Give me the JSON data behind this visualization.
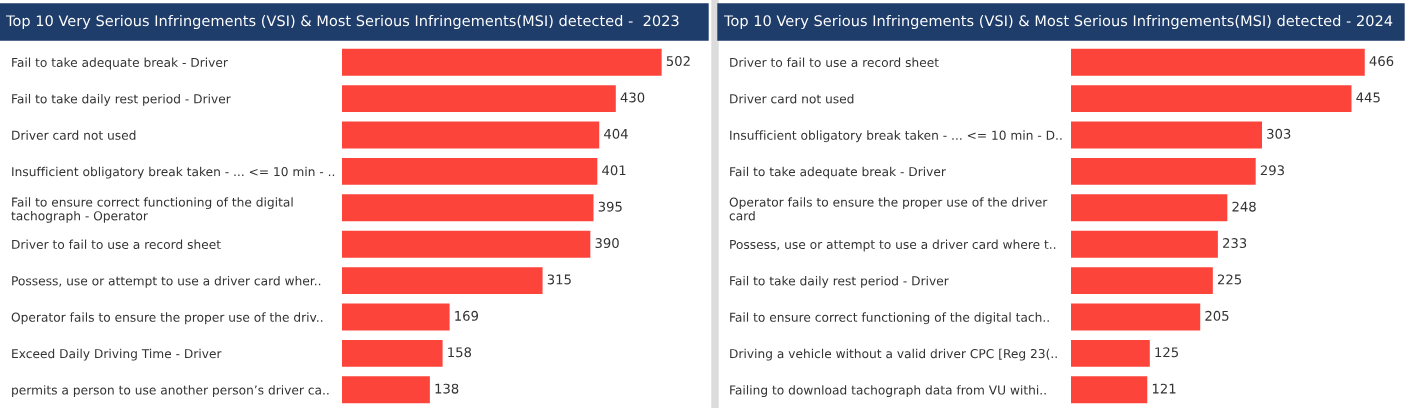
{
  "chart_data": [
    {
      "type": "bar",
      "orientation": "horizontal",
      "title": "Top 10 Very Serious Infringements (VSI) & Most Serious Infringements(MSI) detected -  2023",
      "categories": [
        "Fail to take adequate break - Driver",
        "Fail to take daily rest period - Driver",
        "Driver card not used",
        "Insufficient obligatory break taken - ... <= 10 min - ..",
        "Fail to ensure correct functioning of the digital\ntachograph - Operator",
        "Driver to fail to use a record sheet",
        "Possess, use or attempt to use a driver card wher..",
        "Operator fails to ensure the proper use of the driv..",
        "Exceed Daily Driving Time - Driver",
        "permits a person to use another person’s driver ca.."
      ],
      "values": [
        502,
        430,
        404,
        401,
        395,
        390,
        315,
        169,
        158,
        138
      ],
      "color": "#fd443a",
      "data_labels": true,
      "tick_labels": "y",
      "grid": false,
      "legend": false
    },
    {
      "type": "bar",
      "orientation": "horizontal",
      "title": "Top 10 Very Serious Infringements (VSI) & Most Serious Infringements(MSI) detected - 2024",
      "categories": [
        "Driver to fail to use a record sheet",
        "Driver card not used",
        "Insufficient obligatory break taken - ... <= 10 min - D..",
        "Fail to take adequate break - Driver",
        "Operator fails to ensure the proper use of the driver\ncard",
        "Possess, use or attempt to use a driver card where t..",
        "Fail to take daily rest period - Driver",
        "Fail to ensure correct functioning of the digital tach..",
        "Driving a vehicle without a valid driver CPC [Reg 23(..",
        "Failing to download tachograph data from VU withi.."
      ],
      "values": [
        466,
        445,
        303,
        293,
        248,
        233,
        225,
        205,
        125,
        121
      ],
      "color": "#fd443a",
      "data_labels": true,
      "tick_labels": "y",
      "grid": false,
      "legend": false
    }
  ]
}
